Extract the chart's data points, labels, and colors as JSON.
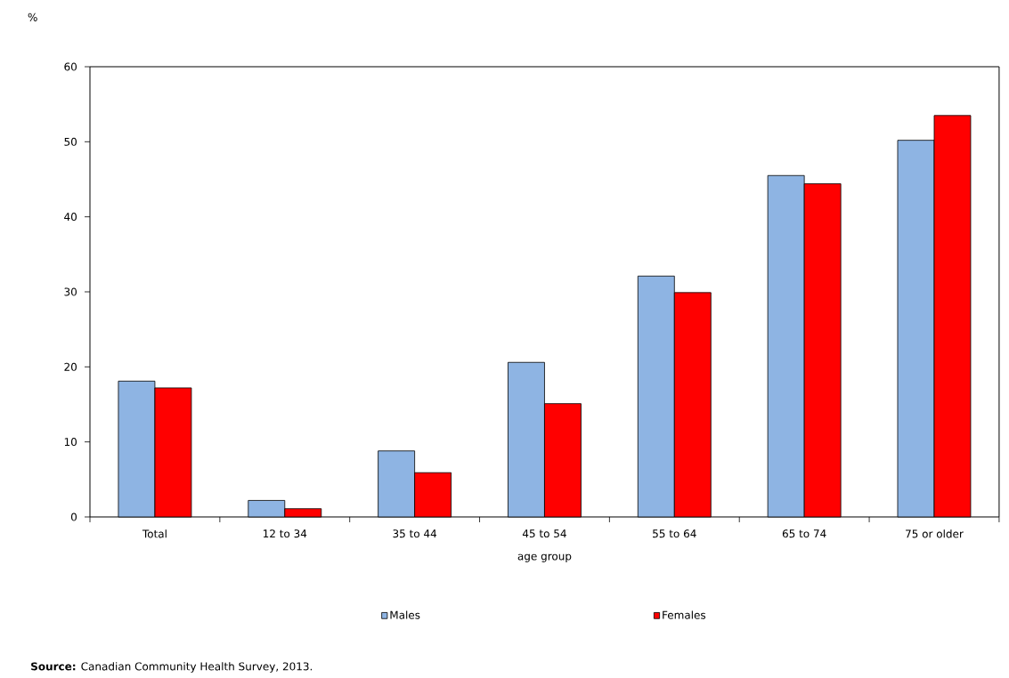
{
  "chart_data": {
    "type": "bar",
    "ylabel": "%",
    "xlabel": "age group",
    "categories": [
      "Total",
      "12 to 34",
      "35 to 44",
      "45 to 54",
      "55 to 64",
      "65 to 74",
      "75 or older"
    ],
    "series": [
      {
        "name": "Males",
        "color": "#8eb4e3",
        "values": [
          18.1,
          2.2,
          8.8,
          20.6,
          32.1,
          45.5,
          50.2
        ]
      },
      {
        "name": "Females",
        "color": "#ff0000",
        "values": [
          17.2,
          1.1,
          5.9,
          15.1,
          29.9,
          44.4,
          53.5
        ]
      }
    ],
    "ylim": [
      0,
      60
    ],
    "yticks": [
      0,
      10,
      20,
      30,
      40,
      50,
      60
    ],
    "legend": "bottom",
    "grid": false,
    "annotations": [
      "**Source:** Canadian Community Health Survey, 2013."
    ]
  }
}
